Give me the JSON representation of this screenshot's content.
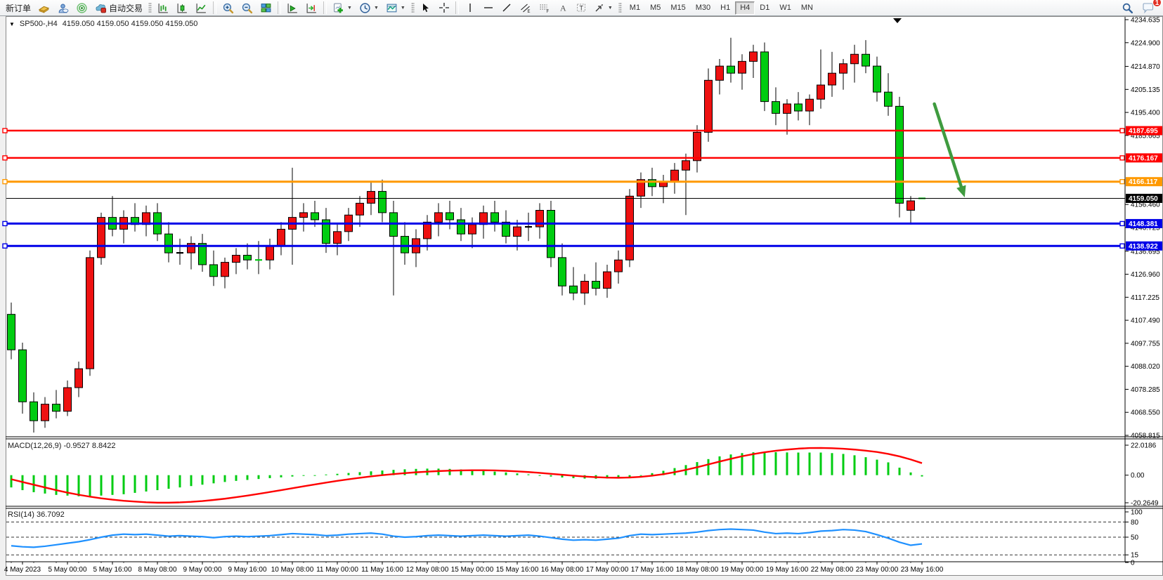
{
  "toolbar": {
    "new_order": "新订单",
    "autotrading": "自动交易",
    "timeframes": [
      "M1",
      "M5",
      "M15",
      "M30",
      "H1",
      "H4",
      "D1",
      "W1",
      "MN"
    ],
    "active_timeframe": "H4",
    "chat_badge": "1"
  },
  "window": {
    "title": "SP500-,H4",
    "quotes": "4159.050 4159.050 4159.050 4159.050"
  },
  "chart_data": {
    "type": "candlestick",
    "symbol": "SP500-",
    "timeframe": "H4",
    "current_ohlc": [
      4159.05,
      4159.05,
      4159.05,
      4159.05
    ],
    "price_axis": {
      "max": 4234.635,
      "min": 4058.815,
      "ticks": [
        "4234.635",
        "4224.900",
        "4214.870",
        "4205.135",
        "4195.400",
        "4185.665",
        "4156.460",
        "4146.725",
        "4136.695",
        "4126.960",
        "4117.225",
        "4107.490",
        "4097.755",
        "4088.020",
        "4078.285",
        "4068.550",
        "4058.815"
      ]
    },
    "time_labels": [
      "4 May 2023",
      "5 May 00:00",
      "5 May 16:00",
      "8 May 08:00",
      "9 May 00:00",
      "9 May 16:00",
      "10 May 08:00",
      "11 May 00:00",
      "11 May 16:00",
      "12 May 08:00",
      "15 May 00:00",
      "15 May 16:00",
      "16 May 08:00",
      "17 May 00:00",
      "17 May 16:00",
      "18 May 08:00",
      "19 May 00:00",
      "19 May 16:00",
      "22 May 08:00",
      "23 May 00:00",
      "23 May 16:00"
    ],
    "up_color": "#ee1111",
    "down_color": "#00cc11",
    "candles": [
      [
        4110,
        4115,
        4091,
        4095
      ],
      [
        4095,
        4098,
        4068,
        4073
      ],
      [
        4073,
        4077,
        4060,
        4065
      ],
      [
        4065,
        4075,
        4062,
        4072
      ],
      [
        4072,
        4078,
        4066,
        4069
      ],
      [
        4069,
        4082,
        4067,
        4079
      ],
      [
        4079,
        4090,
        4075,
        4087
      ],
      [
        4087,
        4137,
        4084,
        4134
      ],
      [
        4134,
        4153,
        4131,
        4151
      ],
      [
        4151,
        4160,
        4143,
        4146
      ],
      [
        4146,
        4154,
        4140,
        4151
      ],
      [
        4151,
        4157,
        4145,
        4148
      ],
      [
        4148,
        4156,
        4143,
        4153
      ],
      [
        4153,
        4157,
        4141,
        4144
      ],
      [
        4144,
        4149,
        4132,
        4136
      ],
      [
        4136,
        4142,
        4131,
        4136
      ],
      [
        4136,
        4143,
        4129,
        4140
      ],
      [
        4140,
        4144,
        4128,
        4131
      ],
      [
        4131,
        4137,
        4122,
        4126
      ],
      [
        4126,
        4134,
        4121,
        4132
      ],
      [
        4132,
        4138,
        4127,
        4135
      ],
      [
        4135,
        4140,
        4129,
        4133
      ],
      [
        4133.4,
        4141,
        4127,
        4133
      ],
      [
        4133,
        4142,
        4129,
        4139
      ],
      [
        4139,
        4149,
        4135,
        4146
      ],
      [
        4146,
        4172,
        4131,
        4151
      ],
      [
        4151,
        4157,
        4145,
        4153
      ],
      [
        4153,
        4158,
        4147,
        4150
      ],
      [
        4150,
        4155,
        4136,
        4140
      ],
      [
        4140,
        4148,
        4135,
        4145
      ],
      [
        4145,
        4155,
        4141,
        4152
      ],
      [
        4152,
        4160,
        4147,
        4157
      ],
      [
        4157,
        4166,
        4152,
        4162
      ],
      [
        4162,
        4167,
        4149,
        4153
      ],
      [
        4153,
        4158,
        4118,
        4143
      ],
      [
        4143,
        4149,
        4131,
        4136
      ],
      [
        4136,
        4146,
        4130,
        4142
      ],
      [
        4142,
        4152,
        4137,
        4149
      ],
      [
        4149,
        4157,
        4143,
        4153
      ],
      [
        4153,
        4158,
        4146,
        4150
      ],
      [
        4150,
        4155,
        4141,
        4144
      ],
      [
        4144,
        4151,
        4138,
        4148
      ],
      [
        4148,
        4156,
        4142,
        4153
      ],
      [
        4153,
        4158,
        4145,
        4149
      ],
      [
        4149,
        4154,
        4140,
        4143
      ],
      [
        4143,
        4150,
        4137,
        4147
      ],
      [
        4147,
        4153,
        4141,
        4147
      ],
      [
        4147,
        4157,
        4142,
        4154
      ],
      [
        4154,
        4158,
        4130,
        4134
      ],
      [
        4134,
        4140,
        4118,
        4122
      ],
      [
        4122,
        4130,
        4116,
        4119
      ],
      [
        4119,
        4127,
        4114,
        4124
      ],
      [
        4124,
        4132,
        4118,
        4121
      ],
      [
        4121,
        4131,
        4117,
        4128
      ],
      [
        4128,
        4137,
        4123,
        4133
      ],
      [
        4133,
        4163,
        4130,
        4160
      ],
      [
        4160,
        4170,
        4155,
        4167
      ],
      [
        4167,
        4172,
        4160,
        4164
      ],
      [
        4164,
        4169,
        4157,
        4166
      ],
      [
        4166,
        4174,
        4161,
        4171
      ],
      [
        4171,
        4178,
        4152,
        4175
      ],
      [
        4175,
        4190,
        4170,
        4187
      ],
      [
        4187,
        4214,
        4183,
        4209
      ],
      [
        4209,
        4218,
        4203,
        4215
      ],
      [
        4215,
        4227,
        4208,
        4212
      ],
      [
        4212,
        4220,
        4205,
        4217
      ],
      [
        4217,
        4224,
        4210,
        4221
      ],
      [
        4221,
        4225,
        4196,
        4200
      ],
      [
        4200,
        4206,
        4190,
        4195
      ],
      [
        4195,
        4201,
        4186,
        4199
      ],
      [
        4199,
        4204,
        4192,
        4196
      ],
      [
        4196,
        4203,
        4190,
        4201
      ],
      [
        4201,
        4222,
        4197,
        4207
      ],
      [
        4207,
        4221,
        4202,
        4212
      ],
      [
        4212,
        4218,
        4205,
        4216
      ],
      [
        4216,
        4224,
        4208,
        4220
      ],
      [
        4220,
        4226,
        4212,
        4215
      ],
      [
        4215,
        4219,
        4200,
        4204
      ],
      [
        4204,
        4212,
        4194,
        4198
      ],
      [
        4198,
        4202,
        4151,
        4157
      ],
      [
        4154,
        4160,
        4148,
        4158
      ],
      [
        4159.05,
        4159.05,
        4159.05,
        4159.05
      ]
    ],
    "hlines": [
      {
        "price": 4187.695,
        "label": "4187.695",
        "color": "#ff0000",
        "width": 2.5
      },
      {
        "price": 4176.167,
        "label": "4176.167",
        "color": "#ff0000",
        "width": 2.5
      },
      {
        "price": 4166.117,
        "label": "4166.117",
        "color": "#ff9900",
        "width": 3
      },
      {
        "price": 4148.381,
        "label": "4148.381",
        "color": "#0000e8",
        "width": 3
      },
      {
        "price": 4138.922,
        "label": "4138.922",
        "color": "#0000e8",
        "width": 3
      }
    ],
    "bid": {
      "price": 4159.05,
      "label": "4159.050",
      "color": "#000000"
    },
    "arrow": {
      "from_bar": 82.1,
      "from_price": 4199,
      "to_bar": 84.8,
      "to_price": 4159.5,
      "color": "#3f9b3f"
    },
    "macd": {
      "label": "MACD(12,26,9)",
      "value": "-0.9527 8.8422",
      "scale": {
        "max": 22.0186,
        "min": -20.2649,
        "ticks": [
          "22.0186",
          "0.00",
          "-20.2649"
        ]
      },
      "histogram_color": "#00cc11",
      "signal_color": "#ff0000",
      "histogram": [
        -9,
        -11,
        -12.5,
        -13.5,
        -14.5,
        -15,
        -15.5,
        -15.5,
        -15,
        -14.5,
        -14,
        -13,
        -12,
        -11,
        -10,
        -9,
        -8,
        -7,
        -6,
        -5,
        -4.2,
        -3.5,
        -2.8,
        -2.2,
        -1.6,
        -1,
        -0.5,
        0,
        0.5,
        1,
        1.6,
        2.2,
        2.8,
        3.4,
        3.9,
        4.3,
        4.6,
        4.8,
        4.8,
        4.6,
        4.2,
        3.8,
        3.2,
        2.6,
        2,
        1.3,
        0.6,
        -0.2,
        -1,
        -1.7,
        -2.2,
        -2.5,
        -2.6,
        -2.4,
        -2,
        -1.2,
        0,
        1.5,
        3.2,
        5.2,
        7.4,
        9.6,
        11.8,
        13.8,
        15.2,
        16.2,
        16.8,
        17,
        16.9,
        16.7,
        16.6,
        16.6,
        16.6,
        16.2,
        15.6,
        14.6,
        13.2,
        11.4,
        9.4,
        5.5,
        2,
        -0.9527
      ],
      "signal": [
        -3,
        -5,
        -7,
        -9,
        -11,
        -12.8,
        -14.4,
        -15.8,
        -17,
        -18,
        -18.8,
        -19.4,
        -19.9,
        -20.2,
        -20.2,
        -20,
        -19.6,
        -19,
        -18.2,
        -17.3,
        -16.2,
        -15,
        -13.7,
        -12.4,
        -11,
        -9.6,
        -8.2,
        -6.8,
        -5.5,
        -4.2,
        -3,
        -1.9,
        -0.9,
        0,
        0.8,
        1.5,
        2.1,
        2.6,
        3,
        3.3,
        3.5,
        3.6,
        3.6,
        3.5,
        3.2,
        2.8,
        2.3,
        1.7,
        1,
        0.3,
        -0.4,
        -1,
        -1.5,
        -1.8,
        -1.9,
        -1.7,
        -1.2,
        -0.4,
        0.7,
        2.2,
        3.9,
        5.8,
        7.9,
        10,
        12,
        13.9,
        15.5,
        16.8,
        17.9,
        18.8,
        19.5,
        19.9,
        20,
        19.8,
        19.4,
        18.8,
        18,
        17,
        15.6,
        13.8,
        11.5,
        8.8422
      ]
    },
    "rsi": {
      "label": "RSI(14)",
      "value": "36.7092",
      "levels": [
        80,
        50,
        15
      ],
      "scale_ticks": [
        "100",
        "80",
        "50",
        "15",
        "0"
      ],
      "color": "#1e90ff",
      "values": [
        33,
        31,
        30,
        32,
        35,
        38,
        41,
        45,
        50,
        54,
        56,
        55,
        56,
        54,
        52,
        53,
        52,
        51,
        49,
        51,
        52,
        51,
        52,
        53,
        55,
        57,
        56,
        55,
        53,
        54,
        56,
        57,
        58,
        56,
        52,
        50,
        51,
        53,
        54,
        53,
        52,
        53,
        54,
        53,
        52,
        53,
        54,
        52,
        49,
        46,
        44,
        45,
        44,
        46,
        48,
        53,
        56,
        55,
        56,
        57,
        58,
        60,
        63,
        65,
        66,
        65,
        64,
        60,
        57,
        58,
        57,
        59,
        62,
        63,
        65,
        64,
        61,
        55,
        48,
        40,
        34,
        36.7
      ]
    }
  }
}
